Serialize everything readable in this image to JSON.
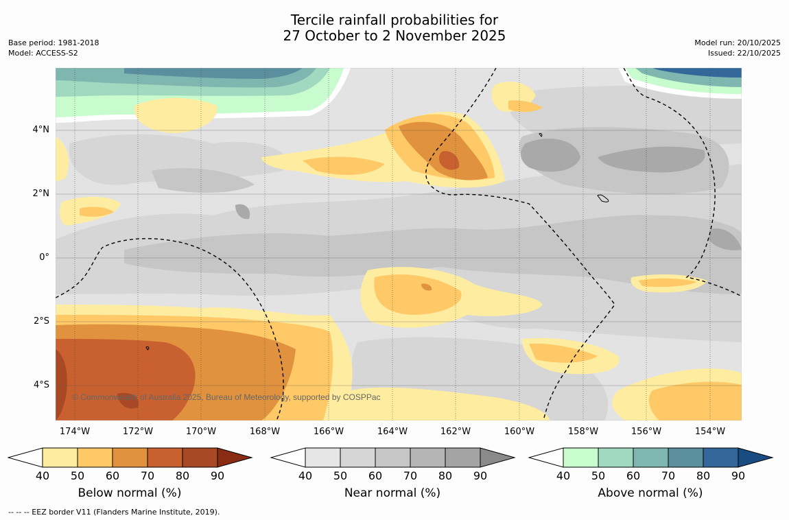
{
  "title": {
    "line1": "Tercile rainfall probabilities for",
    "line2": "27 October to 2 November 2025"
  },
  "meta_left": {
    "base_period": "Base period: 1981-2018",
    "model": "Model: ACCESS-S2"
  },
  "meta_right": {
    "model_run": "Model run: 20/10/2025",
    "issued": "Issued: 22/10/2025"
  },
  "map": {
    "copyright": "© Commonwealth of Australia 2025, Bureau of Meteorology, supported by COSPPac",
    "lat_labels": [
      "4°N",
      "2°N",
      "0°",
      "2°S",
      "4°S"
    ],
    "lon_labels": [
      "174°W",
      "172°W",
      "170°W",
      "168°W",
      "166°W",
      "164°W",
      "162°W",
      "160°W",
      "158°W",
      "156°W",
      "154°W"
    ],
    "colors": {
      "ocean_near": "#e3e3e3",
      "ocean_white": "#ffffff"
    }
  },
  "colorbars": {
    "below": {
      "title": "Below normal (%)",
      "ticks": [
        "40",
        "50",
        "60",
        "70",
        "80",
        "90"
      ],
      "colors": [
        "#ffffff",
        "#feeca0",
        "#fec966",
        "#e0923f",
        "#c96030",
        "#a84824",
        "#8a2c14"
      ]
    },
    "near": {
      "title": "Near normal (%)",
      "ticks": [
        "40",
        "50",
        "60",
        "70",
        "80",
        "90"
      ],
      "colors": [
        "#ffffff",
        "#e6e6e6",
        "#d6d6d6",
        "#c6c6c6",
        "#b5b5b5",
        "#a4a4a4",
        "#8a8a8a"
      ]
    },
    "above": {
      "title": "Above normal (%)",
      "ticks": [
        "40",
        "50",
        "60",
        "70",
        "80",
        "90"
      ],
      "colors": [
        "#ffffff",
        "#c8fcce",
        "#a0d8c0",
        "#7fb6b0",
        "#5b8fa0",
        "#33679a",
        "#1a4c84"
      ]
    }
  },
  "footer": "--  --  -- EEZ border V11 (Flanders Marine Institute, 2019)."
}
